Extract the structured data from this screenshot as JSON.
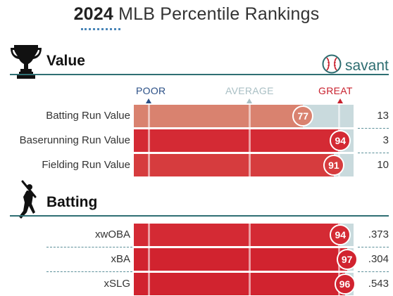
{
  "page": {
    "title_year": "2024",
    "title_rest": " MLB Percentile Rankings"
  },
  "brand": {
    "label": "savant",
    "icon": "baseball-icon"
  },
  "scale": {
    "poor": "POOR",
    "average": "AVERAGE",
    "great": "GREAT"
  },
  "colors": {
    "teal": "#2f6f73",
    "poor_blue": "#2a4f86",
    "great_red": "#c8202d",
    "track": "#c9dadd"
  },
  "sections": [
    {
      "title": "Value",
      "icon": "trophy-icon",
      "rows": [
        {
          "label": "Batting Run Value",
          "percentile": 77,
          "value": "13",
          "color": "#d9826f"
        },
        {
          "label": "Baserunning Run Value",
          "percentile": 94,
          "value": "3",
          "color": "#d42a34"
        },
        {
          "label": "Fielding Run Value",
          "percentile": 91,
          "value": "10",
          "color": "#d63c3e"
        }
      ]
    },
    {
      "title": "Batting",
      "icon": "batter-silhouette-icon",
      "rows": [
        {
          "label": "xwOBA",
          "percentile": 94,
          "value": ".373",
          "color": "#d42a34"
        },
        {
          "label": "xBA",
          "percentile": 97,
          "value": ".304",
          "color": "#d1232f"
        },
        {
          "label": "xSLG",
          "percentile": 96,
          "value": ".543",
          "color": "#d1232f"
        }
      ]
    }
  ]
}
